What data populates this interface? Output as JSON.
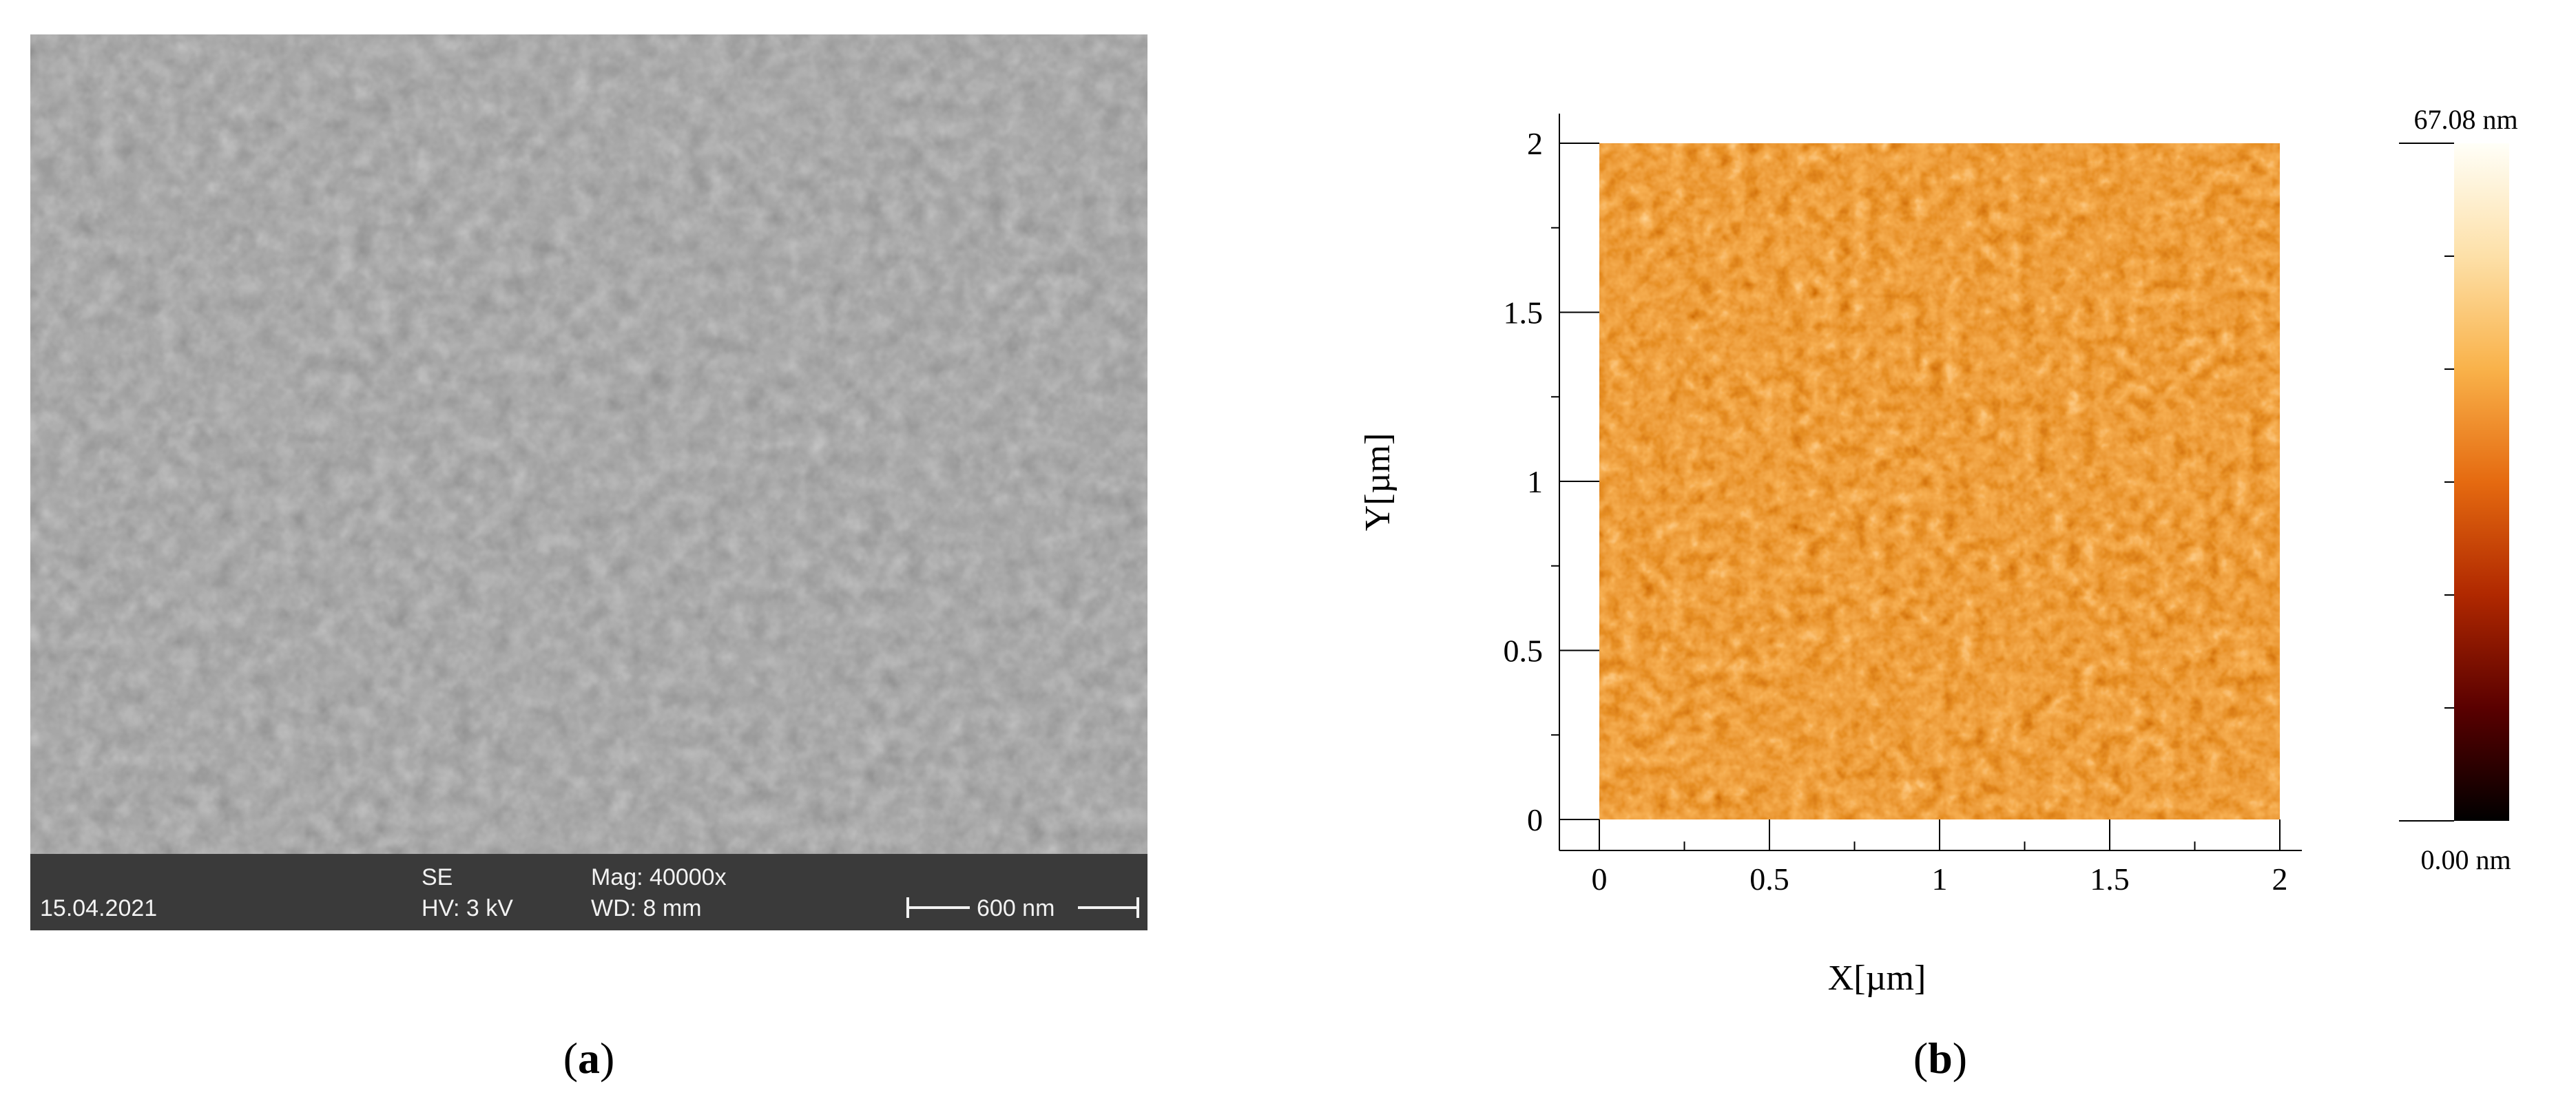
{
  "panel_a": {
    "label_text": "a",
    "label_open": "(",
    "label_close": ")",
    "databar": {
      "date": "15.04.2021",
      "detector": "SE",
      "voltage": "HV: 3 kV",
      "magnification": "Mag: 40000x",
      "working_distance": "WD: 8 mm",
      "scale_bar": "600 nm"
    }
  },
  "panel_b": {
    "label_text": "b",
    "label_open": "(",
    "label_close": ")",
    "x_axis": {
      "label": "X[µm]",
      "ticks": [
        "0",
        "0.5",
        "1",
        "1.5",
        "2"
      ],
      "range": [
        0,
        2
      ]
    },
    "y_axis": {
      "label": "Y[µm]",
      "ticks": [
        "0",
        "0.5",
        "1",
        "1.5",
        "2"
      ],
      "range": [
        0,
        2
      ]
    },
    "colorbar": {
      "max_label": "67.08 nm",
      "min_label": "0.00 nm",
      "colors": [
        "#000000",
        "#5a0000",
        "#b02800",
        "#e56a10",
        "#f9b24a",
        "#fde0a8",
        "#fffff8"
      ]
    }
  }
}
